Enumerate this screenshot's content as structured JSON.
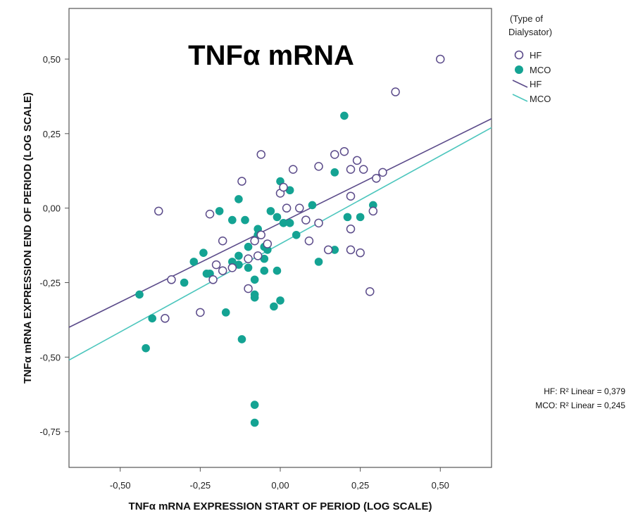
{
  "chart_data": {
    "type": "scatter",
    "title": "TNFα mRNA",
    "xlabel": "TNFα mRNA EXPRESSION START OF PERIOD (LOG SCALE)",
    "ylabel": "TNFα mRNA EXPRESSION END OF PERIOD (LOG SCALE)",
    "xlim": [
      -0.66,
      0.66
    ],
    "ylim": [
      -0.87,
      0.67
    ],
    "x_ticks": [
      -0.5,
      -0.25,
      0.0,
      0.25,
      0.5
    ],
    "x_tick_labels": [
      "-0,50",
      "-0,25",
      "0,00",
      "0,25",
      "0,50"
    ],
    "y_ticks": [
      0.5,
      0.25,
      0.0,
      -0.25,
      -0.5,
      -0.75
    ],
    "y_tick_labels": [
      "0,50",
      "0,25",
      "0,00",
      "-0,25",
      "-0,50",
      "-0,75"
    ],
    "grid": false,
    "legend_title": "(Type of Dialysator)",
    "legend_placement": "top-right, outside plot",
    "legend_entries": [
      {
        "label": "HF",
        "kind": "marker-open"
      },
      {
        "label": "MCO",
        "kind": "marker-filled"
      },
      {
        "label": "HF",
        "kind": "line"
      },
      {
        "label": "MCO",
        "kind": "line"
      }
    ],
    "r2_annotations": [
      "HF: R² Linear = 0,379",
      "MCO: R² Linear = 0,245"
    ],
    "colors": {
      "HF": "#5b4b8a",
      "MCO": "#14a393",
      "HF_line": "#5b4b8a",
      "MCO_line": "#4cc6bd",
      "frame": "#555555"
    },
    "series": [
      {
        "name": "HF",
        "marker": "open-circle",
        "points": [
          [
            0.5,
            0.5
          ],
          [
            0.36,
            0.39
          ],
          [
            0.32,
            0.12
          ],
          [
            0.3,
            0.1
          ],
          [
            0.26,
            0.13
          ],
          [
            0.24,
            0.16
          ],
          [
            0.2,
            0.19
          ],
          [
            0.17,
            0.18
          ],
          [
            0.22,
            0.13
          ],
          [
            0.12,
            0.14
          ],
          [
            0.04,
            0.13
          ],
          [
            -0.06,
            0.18
          ],
          [
            -0.12,
            0.09
          ],
          [
            0.0,
            0.05
          ],
          [
            0.01,
            0.07
          ],
          [
            0.02,
            0.0
          ],
          [
            0.06,
            0.0
          ],
          [
            0.22,
            0.04
          ],
          [
            0.29,
            -0.01
          ],
          [
            -0.38,
            -0.01
          ],
          [
            -0.22,
            -0.02
          ],
          [
            0.08,
            -0.04
          ],
          [
            0.12,
            -0.05
          ],
          [
            0.22,
            -0.07
          ],
          [
            -0.06,
            -0.09
          ],
          [
            -0.04,
            -0.12
          ],
          [
            -0.08,
            -0.11
          ],
          [
            -0.18,
            -0.11
          ],
          [
            0.09,
            -0.11
          ],
          [
            0.15,
            -0.14
          ],
          [
            0.22,
            -0.14
          ],
          [
            0.25,
            -0.15
          ],
          [
            -0.07,
            -0.16
          ],
          [
            -0.1,
            -0.17
          ],
          [
            -0.15,
            -0.2
          ],
          [
            -0.18,
            -0.21
          ],
          [
            -0.2,
            -0.19
          ],
          [
            -0.21,
            -0.24
          ],
          [
            -0.34,
            -0.24
          ],
          [
            -0.1,
            -0.27
          ],
          [
            0.28,
            -0.28
          ],
          [
            -0.25,
            -0.35
          ],
          [
            -0.36,
            -0.37
          ]
        ]
      },
      {
        "name": "MCO",
        "marker": "filled-circle",
        "points": [
          [
            0.2,
            0.31
          ],
          [
            0.17,
            0.12
          ],
          [
            0.0,
            0.09
          ],
          [
            0.03,
            0.06
          ],
          [
            0.29,
            0.01
          ],
          [
            0.1,
            0.01
          ],
          [
            -0.19,
            -0.01
          ],
          [
            -0.03,
            -0.01
          ],
          [
            -0.13,
            0.03
          ],
          [
            -0.01,
            -0.03
          ],
          [
            0.21,
            -0.03
          ],
          [
            0.25,
            -0.03
          ],
          [
            -0.15,
            -0.04
          ],
          [
            -0.11,
            -0.04
          ],
          [
            0.03,
            -0.05
          ],
          [
            0.01,
            -0.05
          ],
          [
            -0.07,
            -0.07
          ],
          [
            -0.07,
            -0.09
          ],
          [
            0.05,
            -0.09
          ],
          [
            -0.1,
            -0.13
          ],
          [
            -0.05,
            -0.13
          ],
          [
            -0.04,
            -0.14
          ],
          [
            0.17,
            -0.14
          ],
          [
            -0.24,
            -0.15
          ],
          [
            -0.13,
            -0.16
          ],
          [
            -0.05,
            -0.17
          ],
          [
            -0.15,
            -0.18
          ],
          [
            -0.27,
            -0.18
          ],
          [
            -0.1,
            -0.2
          ],
          [
            -0.13,
            -0.19
          ],
          [
            0.12,
            -0.18
          ],
          [
            -0.05,
            -0.21
          ],
          [
            -0.01,
            -0.21
          ],
          [
            -0.23,
            -0.22
          ],
          [
            -0.22,
            -0.22
          ],
          [
            -0.08,
            -0.24
          ],
          [
            -0.3,
            -0.25
          ],
          [
            -0.44,
            -0.29
          ],
          [
            -0.08,
            -0.29
          ],
          [
            -0.08,
            -0.3
          ],
          [
            0.0,
            -0.31
          ],
          [
            -0.02,
            -0.33
          ],
          [
            -0.17,
            -0.35
          ],
          [
            -0.4,
            -0.37
          ],
          [
            -0.12,
            -0.44
          ],
          [
            -0.42,
            -0.47
          ],
          [
            -0.08,
            -0.66
          ],
          [
            -0.08,
            -0.72
          ]
        ]
      }
    ],
    "fit_lines": [
      {
        "name": "HF",
        "from": [
          -0.66,
          -0.4
        ],
        "to": [
          0.66,
          0.3
        ]
      },
      {
        "name": "MCO",
        "from": [
          -0.66,
          -0.51
        ],
        "to": [
          0.66,
          0.27
        ]
      }
    ]
  }
}
